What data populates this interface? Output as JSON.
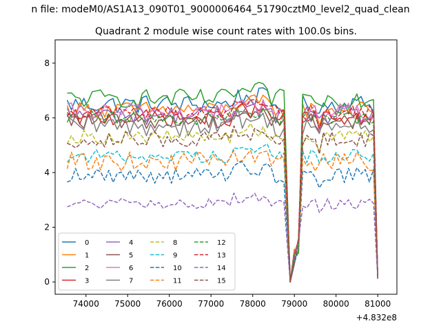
{
  "suptitle": "n file: modeM0/AS1A13_090T01_9000006464_51790cztM0_level2_quad_clean",
  "chart_data": {
    "type": "line",
    "title": "Quadrant 2 module wise count rates with 100.0s bins.",
    "xlabel": "",
    "ylabel": "",
    "x_offset_label": "+4.832e8",
    "xlim": [
      73260,
      81460
    ],
    "ylim": [
      -0.45,
      8.85
    ],
    "xticks": [
      74000,
      75000,
      76000,
      77000,
      78000,
      79000,
      80000,
      81000
    ],
    "yticks": [
      0,
      2,
      4,
      6,
      8
    ],
    "grid": false,
    "legend": {
      "location": "lower-left",
      "columns": 4
    },
    "x_start": 73550,
    "x_step": 100,
    "gap_points": [
      {
        "x": 78900,
        "value_fraction": 0.0
      },
      {
        "x": 79100,
        "value_fraction": 0.2
      }
    ],
    "series": [
      {
        "name": "0",
        "color": "#1f77b4",
        "style": "solid",
        "level": 6.5,
        "amp": 0.35,
        "dip": 6.35
      },
      {
        "name": "1",
        "color": "#ff7f0e",
        "style": "solid",
        "level": 6.3,
        "amp": 0.3,
        "dip": 5.4
      },
      {
        "name": "2",
        "color": "#2ca02c",
        "style": "solid",
        "level": 6.7,
        "amp": 0.35,
        "dip": 5.6
      },
      {
        "name": "3",
        "color": "#d62728",
        "style": "solid",
        "level": 6.0,
        "amp": 0.3,
        "dip": 5.0
      },
      {
        "name": "4",
        "color": "#9467bd",
        "style": "solid",
        "level": 6.1,
        "amp": 0.35,
        "dip": 5.6
      },
      {
        "name": "5",
        "color": "#8c564b",
        "style": "solid",
        "level": 5.9,
        "amp": 0.3,
        "dip": 3.6
      },
      {
        "name": "6",
        "color": "#e377c2",
        "style": "solid",
        "level": 6.2,
        "amp": 0.35,
        "dip": 5.3
      },
      {
        "name": "7",
        "color": "#7f7f7f",
        "style": "solid",
        "level": 5.7,
        "amp": 0.4,
        "dip": 5.0
      },
      {
        "name": "8",
        "color": "#bcbd22",
        "style": "dashed",
        "level": 5.3,
        "amp": 0.25,
        "dip": 4.8
      },
      {
        "name": "9",
        "color": "#17becf",
        "style": "dashed",
        "level": 4.6,
        "amp": 0.25,
        "dip": 4.3
      },
      {
        "name": "10",
        "color": "#1f77b4",
        "style": "dashed",
        "level": 3.9,
        "amp": 0.3,
        "dip": 3.4
      },
      {
        "name": "11",
        "color": "#ff7f0e",
        "style": "dashed",
        "level": 4.4,
        "amp": 0.35,
        "dip": 3.5
      },
      {
        "name": "12",
        "color": "#2ca02c",
        "style": "dashed",
        "level": 6.0,
        "amp": 0.25,
        "dip": 4.6
      },
      {
        "name": "13",
        "color": "#d62728",
        "style": "dashed",
        "level": 6.2,
        "amp": 0.25,
        "dip": 5.2
      },
      {
        "name": "14",
        "color": "#9467bd",
        "style": "dashed",
        "level": 2.85,
        "amp": 0.2,
        "dip": 1.6
      },
      {
        "name": "15",
        "color": "#8c564b",
        "style": "dashed",
        "level": 5.2,
        "amp": 0.3,
        "dip": 4.2
      }
    ]
  }
}
